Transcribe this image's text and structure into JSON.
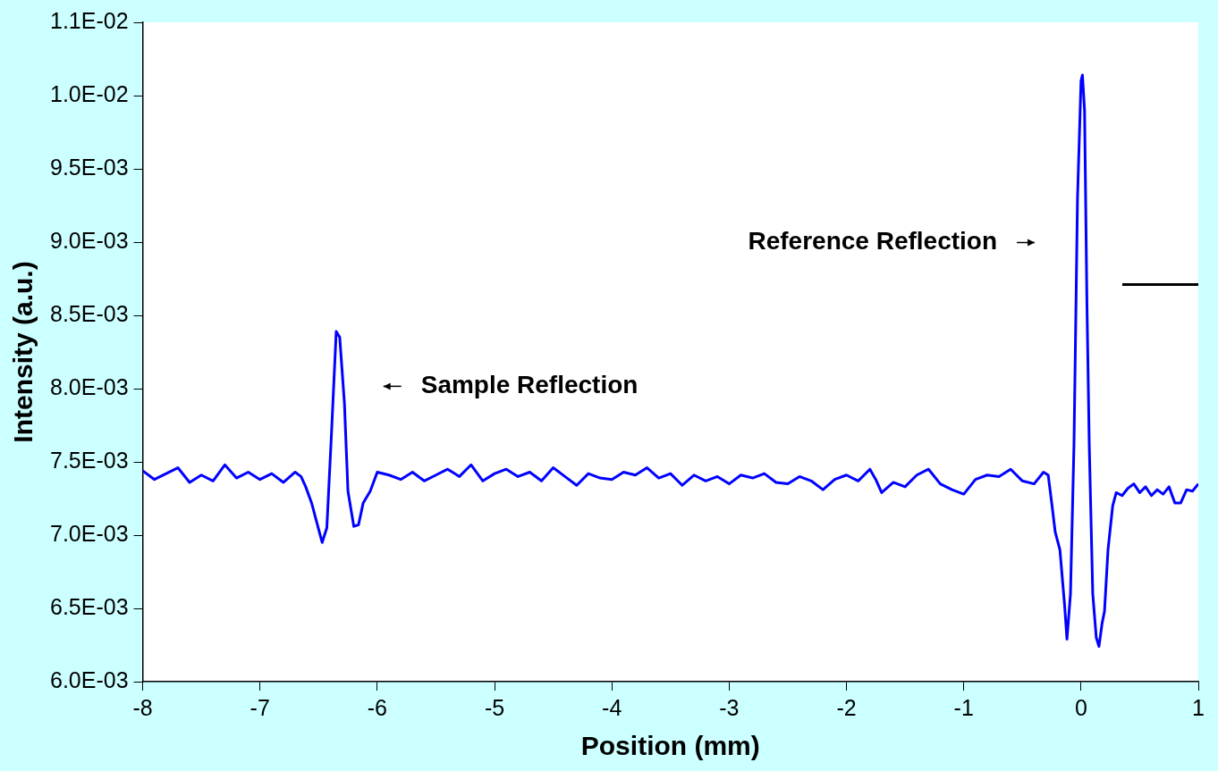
{
  "chart_data": {
    "type": "line",
    "xlabel": "Position (mm)",
    "ylabel": "Intensity (a.u.)",
    "xlim": [
      -8,
      1
    ],
    "xticks": [
      -8,
      -7,
      -6,
      -5,
      -4,
      -3,
      -2,
      -1,
      0,
      1
    ],
    "ylim": [
      0.006,
      0.0105
    ],
    "yticks": [
      {
        "value": 0.006,
        "label": "6.0E-03"
      },
      {
        "value": 0.0065,
        "label": "6.5E-03"
      },
      {
        "value": 0.007,
        "label": "7.0E-03"
      },
      {
        "value": 0.0075,
        "label": "7.5E-03"
      },
      {
        "value": 0.008,
        "label": "8.0E-03"
      },
      {
        "value": 0.0085,
        "label": "8.5E-03"
      },
      {
        "value": 0.009,
        "label": "9.0E-03"
      },
      {
        "value": 0.0095,
        "label": "9.5E-03"
      },
      {
        "value": 0.01,
        "label": "1.0E-02"
      },
      {
        "value": 0.0105,
        "label": "1.1E-02"
      }
    ],
    "grid": false,
    "annotations": [
      "Sample Reflection",
      "Reference Reflection"
    ],
    "series": [
      {
        "color": "#0000ff",
        "x": [
          -8,
          -7.9,
          -7.8,
          -7.7,
          -7.6,
          -7.5,
          -7.4,
          -7.3,
          -7.2,
          -7.1,
          -7.0,
          -6.9,
          -6.8,
          -6.7,
          -6.65,
          -6.61,
          -6.56,
          -6.52,
          -6.47,
          -6.43,
          -6.39,
          -6.35,
          -6.32,
          -6.28,
          -6.25,
          -6.2,
          -6.16,
          -6.12,
          -6.06,
          -6.0,
          -5.9,
          -5.8,
          -5.7,
          -5.6,
          -5.5,
          -5.4,
          -5.3,
          -5.2,
          -5.1,
          -5.0,
          -4.9,
          -4.8,
          -4.7,
          -4.6,
          -4.5,
          -4.4,
          -4.3,
          -4.2,
          -4.1,
          -4.0,
          -3.9,
          -3.8,
          -3.7,
          -3.6,
          -3.5,
          -3.4,
          -3.3,
          -3.2,
          -3.1,
          -3.0,
          -2.9,
          -2.8,
          -2.7,
          -2.6,
          -2.5,
          -2.4,
          -2.3,
          -2.2,
          -2.1,
          -2.0,
          -1.9,
          -1.8,
          -1.75,
          -1.7,
          -1.6,
          -1.5,
          -1.4,
          -1.3,
          -1.2,
          -1.1,
          -1.0,
          -0.9,
          -0.8,
          -0.7,
          -0.6,
          -0.5,
          -0.4,
          -0.32,
          -0.28,
          -0.25,
          -0.22,
          -0.18,
          -0.14,
          -0.12,
          -0.09,
          -0.06,
          -0.03,
          0.0,
          0.012,
          0.03,
          0.05,
          0.07,
          0.1,
          0.13,
          0.153,
          0.18,
          0.2,
          0.23,
          0.27,
          0.3,
          0.35,
          0.4,
          0.45,
          0.5,
          0.55,
          0.6,
          0.65,
          0.7,
          0.75,
          0.8,
          0.85,
          0.9,
          0.95,
          1.0
        ],
        "values": [
          0.00744,
          0.00738,
          0.00742,
          0.00746,
          0.00736,
          0.00741,
          0.00737,
          0.00748,
          0.00739,
          0.00743,
          0.00738,
          0.00742,
          0.00736,
          0.00743,
          0.0074,
          0.00733,
          0.00722,
          0.0071,
          0.00695,
          0.00705,
          0.0077,
          0.00839,
          0.00835,
          0.0079,
          0.0073,
          0.00706,
          0.00707,
          0.00722,
          0.0073,
          0.00743,
          0.00741,
          0.00738,
          0.00743,
          0.00737,
          0.00741,
          0.00745,
          0.0074,
          0.00748,
          0.00737,
          0.00742,
          0.00745,
          0.0074,
          0.00743,
          0.00737,
          0.00746,
          0.0074,
          0.00734,
          0.00742,
          0.00739,
          0.00738,
          0.00743,
          0.00741,
          0.00746,
          0.00739,
          0.00742,
          0.00734,
          0.00741,
          0.00737,
          0.0074,
          0.00735,
          0.00741,
          0.00739,
          0.00742,
          0.00736,
          0.00735,
          0.0074,
          0.00737,
          0.00731,
          0.00738,
          0.00741,
          0.00737,
          0.00745,
          0.00738,
          0.00729,
          0.00736,
          0.00733,
          0.00741,
          0.00745,
          0.00735,
          0.00731,
          0.00728,
          0.00738,
          0.00741,
          0.0074,
          0.00745,
          0.00737,
          0.00735,
          0.00743,
          0.00741,
          0.00722,
          0.00702,
          0.0069,
          0.00652,
          0.00629,
          0.0066,
          0.00762,
          0.0093,
          0.0101,
          0.01014,
          0.0099,
          0.0086,
          0.00762,
          0.0066,
          0.0063,
          0.00624,
          0.0064,
          0.00648,
          0.0069,
          0.0072,
          0.00729,
          0.00727,
          0.00732,
          0.00735,
          0.00729,
          0.00733,
          0.00727,
          0.00731,
          0.00728,
          0.00733,
          0.00722,
          0.00722,
          0.00731,
          0.0073,
          0.00735
        ]
      }
    ]
  }
}
